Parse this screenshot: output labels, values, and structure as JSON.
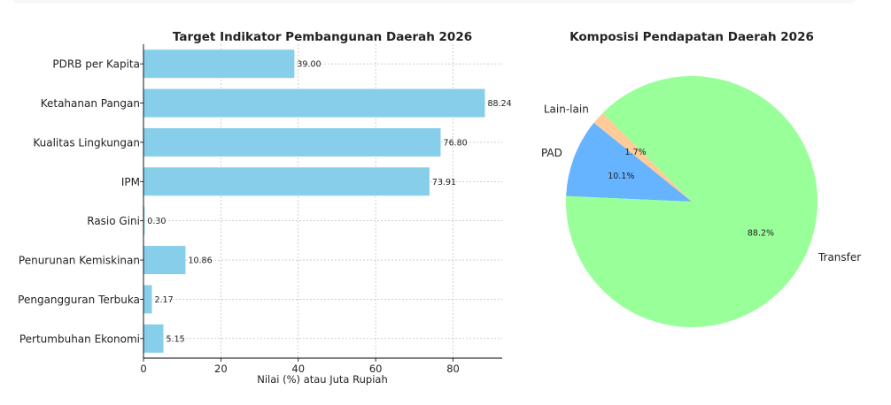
{
  "chart_data": [
    {
      "type": "bar",
      "orientation": "horizontal",
      "title": "Target Indikator Pembangunan Daerah 2026",
      "xlabel": "Nilai (%) atau Juta Rupiah",
      "ylabel": "",
      "xlim": [
        0,
        92.7
      ],
      "xticks": [
        0,
        20,
        40,
        60,
        80
      ],
      "grid": true,
      "color": "#87ceeb",
      "categories": [
        "PDRB per Kapita",
        "Ketahanan Pangan",
        "Kualitas Lingkungan",
        "IPM",
        "Rasio Gini",
        "Penurunan Kemiskinan",
        "Pengangguran Terbuka",
        "Pertumbuhan Ekonomi"
      ],
      "values": [
        39.0,
        88.24,
        76.8,
        73.91,
        0.3,
        10.86,
        2.17,
        5.15
      ],
      "labels": [
        "39.00",
        "88.24",
        "76.80",
        "73.91",
        "0.30",
        "10.86",
        "2.17",
        "5.15"
      ]
    },
    {
      "type": "pie",
      "title": "Komposisi Pendapatan Daerah 2026",
      "start_angle": 135,
      "slices": [
        {
          "label": "Lain-lain",
          "value": 1.7,
          "pct": "1.7%",
          "color": "#ffcc99"
        },
        {
          "label": "PAD",
          "value": 10.1,
          "pct": "10.1%",
          "color": "#66b3ff"
        },
        {
          "label": "Transfer",
          "value": 88.2,
          "pct": "88.2%",
          "color": "#99ff99"
        }
      ]
    }
  ]
}
